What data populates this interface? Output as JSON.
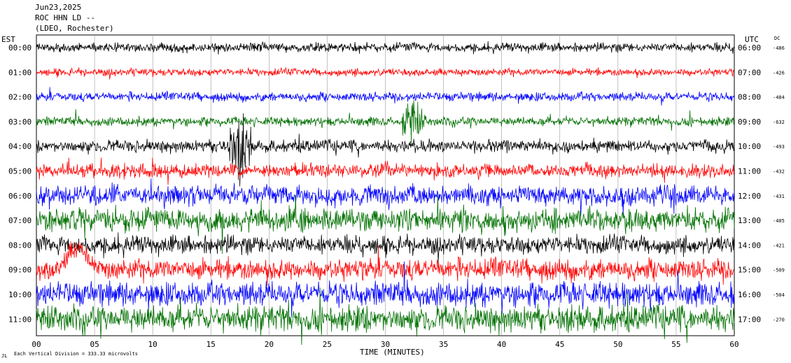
{
  "header": {
    "date": "Jun23,2025",
    "station": "ROC HHN LD --",
    "network": "(LDEO, Rochester)"
  },
  "footer": {
    "scale_note": "Each Vertical Division =  333.33 microvolts",
    "corner_mark": "JL"
  },
  "colors": {
    "cycle": [
      "#000000",
      "#ff0000",
      "#0000ff",
      "#007000"
    ],
    "grid": "#999999"
  },
  "chart_data": {
    "type": "line",
    "title": "",
    "xlabel": "TIME (MINUTES)",
    "left_axis_label": "EST",
    "right_axis_label": "UTC",
    "dc_label": "DC",
    "xlim": [
      0,
      60
    ],
    "x_ticks": [
      "00",
      "05",
      "10",
      "15",
      "20",
      "25",
      "30",
      "35",
      "40",
      "45",
      "50",
      "55",
      "60"
    ],
    "grid": true,
    "traces": [
      {
        "est": "00:00",
        "utc": "06:00",
        "dc": "-486",
        "color": "#000000",
        "amplitude": 6
      },
      {
        "est": "01:00",
        "utc": "07:00",
        "dc": "-426",
        "color": "#ff0000",
        "amplitude": 5
      },
      {
        "est": "02:00",
        "utc": "08:00",
        "dc": "-484",
        "color": "#0000ff",
        "amplitude": 6
      },
      {
        "est": "03:00",
        "utc": "09:00",
        "dc": "-632",
        "color": "#007000",
        "amplitude": 6
      },
      {
        "est": "04:00",
        "utc": "10:00",
        "dc": "-493",
        "color": "#000000",
        "amplitude": 8
      },
      {
        "est": "05:00",
        "utc": "11:00",
        "dc": "-432",
        "color": "#ff0000",
        "amplitude": 9
      },
      {
        "est": "06:00",
        "utc": "12:00",
        "dc": "-431",
        "color": "#0000ff",
        "amplitude": 13
      },
      {
        "est": "07:00",
        "utc": "13:00",
        "dc": "-405",
        "color": "#007000",
        "amplitude": 15
      },
      {
        "est": "08:00",
        "utc": "14:00",
        "dc": "-421",
        "color": "#000000",
        "amplitude": 12
      },
      {
        "est": "09:00",
        "utc": "15:00",
        "dc": "-509",
        "color": "#ff0000",
        "amplitude": 14
      },
      {
        "est": "10:00",
        "utc": "16:00",
        "dc": "-504",
        "color": "#0000ff",
        "amplitude": 16
      },
      {
        "est": "11:00",
        "utc": "17:00",
        "dc": "-270",
        "color": "#007000",
        "amplitude": 17
      }
    ],
    "events": [
      {
        "trace": "04:00",
        "start_min": 16.0,
        "end_min": 18.5,
        "peak_min": 17.5,
        "note": "local event burst"
      },
      {
        "trace": "03:00",
        "start_min": 31.5,
        "end_min": 33.5,
        "peak_min": 32.3,
        "note": "local event burst"
      },
      {
        "trace": "09:00",
        "start_min": 2.0,
        "end_min": 6.0,
        "peak_min": 3.5,
        "note": "long-period swell"
      }
    ]
  }
}
